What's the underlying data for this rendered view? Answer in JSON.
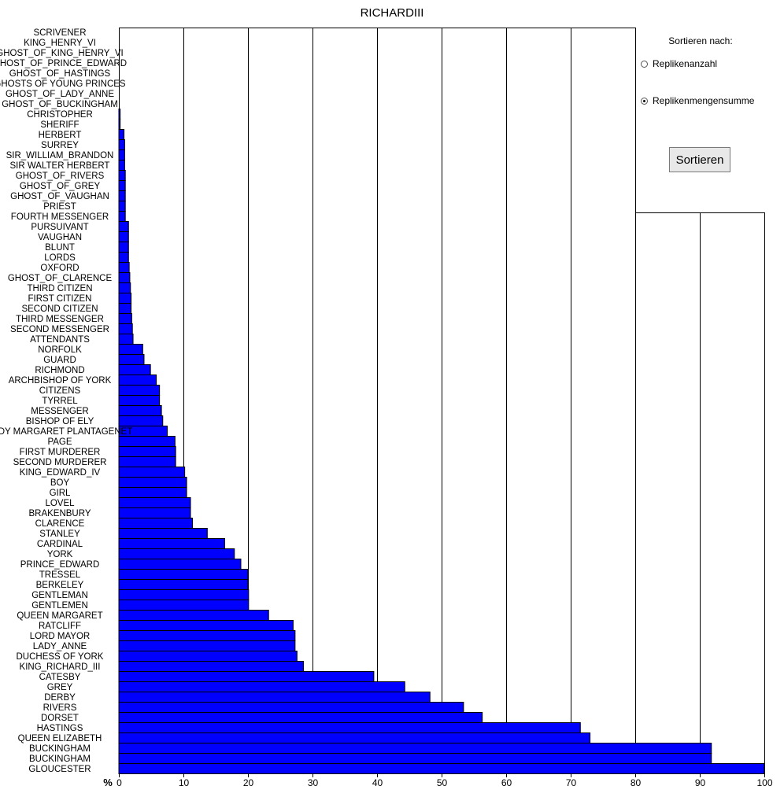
{
  "title": "RICHARDIII",
  "sort_panel": {
    "heading": "Sortieren nach:",
    "options": [
      {
        "label": "Replikenanzahl",
        "selected": false
      },
      {
        "label": "Replikenmengensumme",
        "selected": true
      }
    ],
    "button_label": "Sortieren"
  },
  "chart_data": {
    "type": "bar",
    "orientation": "horizontal",
    "title": "RICHARDIII",
    "xlabel": "%",
    "xlim": [
      0,
      100
    ],
    "xticks": [
      0,
      10,
      20,
      30,
      40,
      50,
      60,
      70,
      80,
      90,
      100
    ],
    "grid": "vertical",
    "bar_color": "#0000ff",
    "categories": [
      "SCRIVENER",
      "KING_HENRY_VI",
      "GHOST_OF_KING_HENRY_VI",
      "GHOST_OF_PRINCE_EDWARD",
      "GHOST_OF_HASTINGS",
      "GHOSTS OF YOUNG PRINCES",
      "GHOST_OF_LADY_ANNE",
      "GHOST_OF_BUCKINGHAM",
      "CHRISTOPHER",
      "SHERIFF",
      "HERBERT",
      "SURREY",
      "SIR_WILLIAM_BRANDON",
      "SIR WALTER HERBERT",
      "GHOST_OF_RIVERS",
      "GHOST_OF_GREY",
      "GHOST_OF_VAUGHAN",
      "PRIEST",
      "FOURTH MESSENGER",
      "PURSUIVANT",
      "VAUGHAN",
      "BLUNT",
      "LORDS",
      "OXFORD",
      "GHOST_OF_CLARENCE",
      "THIRD CITIZEN",
      "FIRST CITIZEN",
      "SECOND CITIZEN",
      "THIRD MESSENGER",
      "SECOND MESSENGER",
      "ATTENDANTS",
      "NORFOLK",
      "GUARD",
      "RICHMOND",
      "ARCHBISHOP OF YORK",
      "CITIZENS",
      "TYRREL",
      "MESSENGER",
      "BISHOP OF ELY",
      "LADY MARGARET PLANTAGENET",
      "PAGE",
      "FIRST MURDERER",
      "SECOND MURDERER",
      "KING_EDWARD_IV",
      "BOY",
      "GIRL",
      "LOVEL",
      "BRAKENBURY",
      "CLARENCE",
      "STANLEY",
      "CARDINAL",
      "YORK",
      "PRINCE_EDWARD",
      "TRESSEL",
      "BERKELEY",
      "GENTLEMAN",
      "GENTLEMEN",
      "QUEEN MARGARET",
      "RATCLIFF",
      "LORD MAYOR",
      "LADY_ANNE",
      "DUCHESS OF YORK",
      "KING_RICHARD_III",
      "CATESBY",
      "GREY",
      "DERBY",
      "RIVERS",
      "DORSET",
      "HASTINGS",
      "QUEEN ELIZABETH",
      "BUCKINGHAM",
      "BUCKINGHAM",
      "GLOUCESTER"
    ],
    "values": [
      0,
      0,
      0,
      0,
      0,
      0,
      0,
      0,
      0.2,
      0.2,
      0.8,
      0.9,
      0.9,
      0.9,
      1.0,
      1.0,
      1.0,
      1.0,
      1.0,
      1.5,
      1.5,
      1.5,
      1.5,
      1.6,
      1.7,
      1.8,
      1.9,
      1.9,
      2.0,
      2.1,
      2.2,
      3.7,
      3.9,
      4.9,
      5.8,
      6.3,
      6.3,
      6.6,
      6.8,
      7.5,
      8.7,
      8.8,
      8.8,
      10.2,
      10.5,
      10.5,
      11.1,
      11.1,
      11.4,
      13.7,
      16.4,
      17.9,
      18.9,
      20.0,
      20.0,
      20.1,
      20.1,
      23.2,
      27.0,
      27.3,
      27.3,
      27.6,
      28.6,
      39.5,
      44.3,
      48.2,
      53.4,
      56.3,
      71.5,
      73.0,
      91.8,
      91.8,
      100
    ]
  }
}
